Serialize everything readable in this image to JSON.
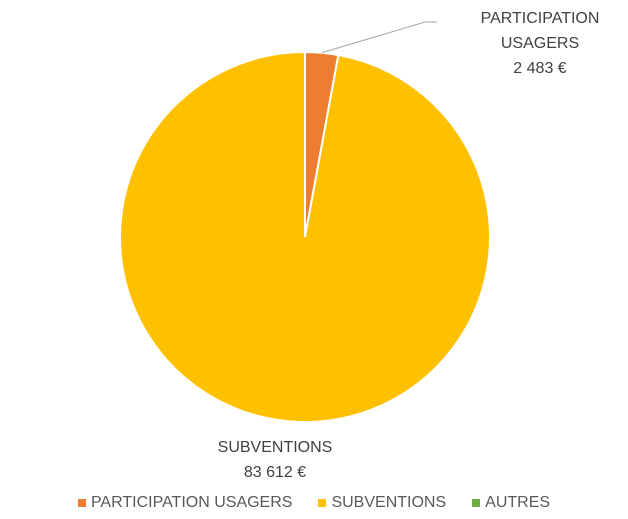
{
  "chart_data": {
    "type": "pie",
    "categories": [
      "PARTICIPATION USAGERS",
      "SUBVENTIONS",
      "AUTRES"
    ],
    "values": [
      2483,
      83612,
      0
    ],
    "value_labels": [
      "2 483 €",
      "83 612 €",
      null
    ],
    "colors": [
      "#ED7D31",
      "#FFC000",
      "#70AD47"
    ],
    "legend": "bottom"
  }
}
